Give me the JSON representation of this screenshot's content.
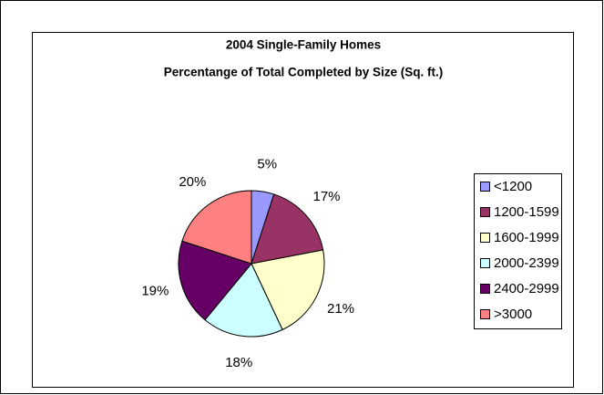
{
  "chart_data": {
    "type": "pie",
    "title": "2004 Single-Family Homes",
    "subtitle": "Percentange of Total Completed by Size (Sq. ft.)",
    "categories": [
      "<1200",
      "1200-1599",
      "1600-1999",
      "2000-2399",
      "2400-2999",
      ">3000"
    ],
    "values": [
      5,
      17,
      21,
      18,
      19,
      20
    ],
    "value_labels": [
      "5%",
      "17%",
      "21%",
      "18%",
      "19%",
      "20%"
    ],
    "colors": [
      "#9999ff",
      "#993366",
      "#ffffcc",
      "#ccffff",
      "#660066",
      "#ff8080"
    ],
    "legend": "right"
  }
}
